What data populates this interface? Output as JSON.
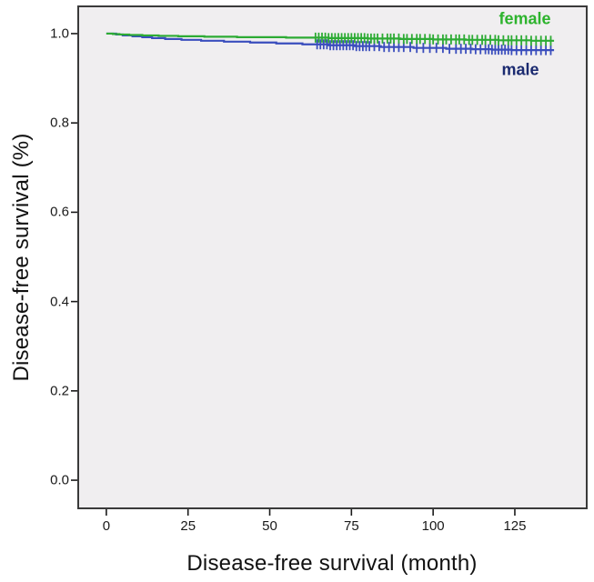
{
  "figure": {
    "background": "#ffffff"
  },
  "chart_data": {
    "type": "line",
    "subtype": "kaplan_meier_step_survival",
    "title": "",
    "xlabel": "Disease-free survival (month)",
    "ylabel": "Disease-free survival (%)",
    "xlim": [
      -8.6,
      147
    ],
    "ylim": [
      -0.063,
      1.061
    ],
    "grid": false,
    "legend_position": "inline-top-right",
    "plot_background": "#f0eef0",
    "border_color": "#3a3a3a",
    "tick_color": "#1a1a1a",
    "x_tick_values": [
      0,
      25,
      50,
      75,
      100,
      125
    ],
    "x_tick_labels": [
      "0",
      "25",
      "50",
      "75",
      "100",
      "125"
    ],
    "y_tick_values": [
      1.0,
      0.8,
      0.6,
      0.4,
      0.2,
      0.0
    ],
    "y_tick_labels": [
      "1.0",
      "0.8",
      "0.6",
      "0.4",
      "0.2",
      "0.0"
    ],
    "series": [
      {
        "name": "male",
        "color": "#3a4dbd",
        "label_color": "#1b2a70",
        "steps": [
          [
            0,
            1.0
          ],
          [
            3,
            0.998
          ],
          [
            5,
            0.996
          ],
          [
            8,
            0.994
          ],
          [
            11,
            0.992
          ],
          [
            14,
            0.99
          ],
          [
            18,
            0.988
          ],
          [
            23,
            0.986
          ],
          [
            29,
            0.984
          ],
          [
            36,
            0.982
          ],
          [
            44,
            0.98
          ],
          [
            52,
            0.978
          ],
          [
            60,
            0.976
          ],
          [
            68,
            0.974
          ],
          [
            76,
            0.972
          ],
          [
            84,
            0.97
          ],
          [
            94,
            0.968
          ],
          [
            104,
            0.966
          ],
          [
            112,
            0.965
          ],
          [
            118,
            0.964
          ],
          [
            124,
            0.963
          ],
          [
            137,
            0.963
          ]
        ],
        "censor_months": [
          64.5,
          65.5,
          66.5,
          67.5,
          68.5,
          69.5,
          70.5,
          71.5,
          72.5,
          73.5,
          74.5,
          75.5,
          76.5,
          77.5,
          78.5,
          79.5,
          80.5,
          82,
          83.5,
          85,
          86.5,
          88,
          89.5,
          91,
          93,
          95,
          97,
          99,
          101,
          103,
          105,
          107,
          108.5,
          110,
          111.5,
          113,
          114.5,
          116,
          117,
          118,
          119,
          120,
          121,
          122,
          123,
          124,
          125.5,
          127,
          128.5,
          130,
          131.5,
          133,
          134.5,
          136
        ]
      },
      {
        "name": "female",
        "color": "#2dab34",
        "label_color": "#2db32d",
        "steps": [
          [
            0,
            1.0
          ],
          [
            2,
            0.999
          ],
          [
            4,
            0.998
          ],
          [
            7,
            0.997
          ],
          [
            11,
            0.996
          ],
          [
            16,
            0.995
          ],
          [
            22,
            0.994
          ],
          [
            30,
            0.993
          ],
          [
            40,
            0.992
          ],
          [
            55,
            0.991
          ],
          [
            68,
            0.99
          ],
          [
            80,
            0.989
          ],
          [
            90,
            0.988
          ],
          [
            100,
            0.987
          ],
          [
            110,
            0.986
          ],
          [
            120,
            0.985
          ],
          [
            130,
            0.984
          ],
          [
            137,
            0.984
          ]
        ],
        "censor_months": [
          64,
          65,
          66,
          67,
          68,
          69,
          70,
          71,
          72,
          73,
          74,
          75,
          76,
          77,
          78,
          79,
          80,
          81,
          82,
          83,
          84.5,
          86,
          87,
          88,
          89.5,
          91,
          92,
          93.5,
          95,
          96,
          97.5,
          99,
          100,
          101.5,
          103,
          104,
          105.5,
          107,
          108,
          109.5,
          111,
          112,
          113.5,
          115,
          116,
          117.5,
          119,
          120,
          121.5,
          123,
          124,
          125.5,
          127,
          128.5,
          130,
          131.5,
          133,
          134.5,
          136
        ]
      }
    ]
  }
}
